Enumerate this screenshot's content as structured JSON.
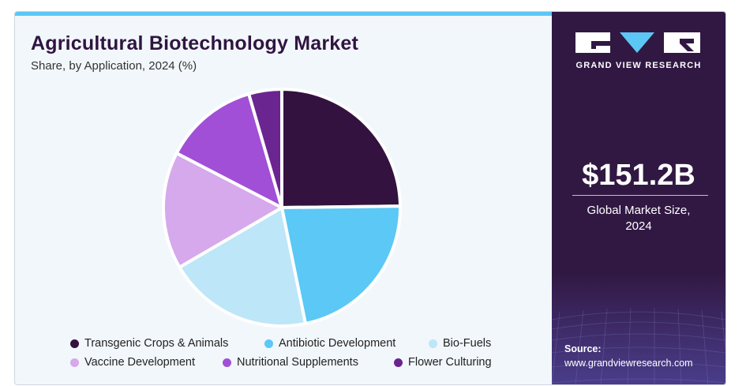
{
  "header": {
    "title": "Agricultural Biotechnology Market",
    "subtitle": "Share, by Application, 2024 (%)"
  },
  "sidebar": {
    "brand": "GRAND VIEW RESEARCH",
    "market_size": "$151.2B",
    "market_size_label_line1": "Global Market Size,",
    "market_size_label_line2": "2024",
    "source_label": "Source:",
    "source_url": "www.grandviewresearch.com"
  },
  "colors": {
    "accent": "#5cc7f4",
    "sidebar_bg": "#311843",
    "title": "#2f1540"
  },
  "chart_data": {
    "type": "pie",
    "title": "Agricultural Biotechnology Market",
    "subtitle": "Share, by Application, 2024 (%)",
    "legend_position": "bottom",
    "slices": [
      {
        "label": "Transgenic Crops & Animals",
        "value": 24.8,
        "color": "#33123f"
      },
      {
        "label": "Antibiotic Development",
        "value": 22.0,
        "color": "#5bc8f5"
      },
      {
        "label": "Bio-Fuels",
        "value": 19.8,
        "color": "#bde6f8"
      },
      {
        "label": "Vaccine Development",
        "value": 16.0,
        "color": "#d6a8ec"
      },
      {
        "label": "Nutritional Supplements",
        "value": 12.9,
        "color": "#a14fd6"
      },
      {
        "label": "Flower Culturing",
        "value": 4.5,
        "color": "#6a2590"
      }
    ]
  }
}
